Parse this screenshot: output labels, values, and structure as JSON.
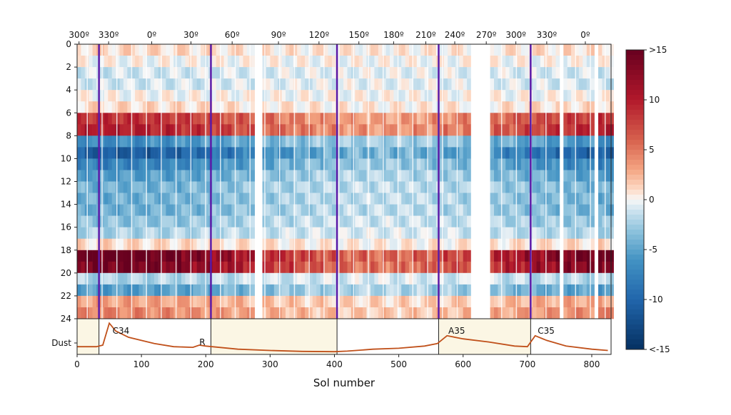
{
  "chart_data": [
    {
      "type": "heatmap",
      "xlabel": "Sol number",
      "xlim": [
        0,
        830
      ],
      "ylim": [
        24,
        0
      ],
      "x_ticks": [
        0,
        100,
        200,
        300,
        400,
        500,
        600,
        700,
        800
      ],
      "y_ticks": [
        0,
        2,
        4,
        6,
        8,
        10,
        12,
        14,
        16,
        18,
        20,
        22,
        24
      ],
      "top_axis": {
        "tick_sols": [
          3,
          49,
          116,
          177,
          241,
          313,
          376,
          438,
          492,
          542,
          587,
          636,
          682,
          730,
          790
        ],
        "tick_labels": [
          "300º",
          "330º",
          "0º",
          "30º",
          "60º",
          "90º",
          "120º",
          "150º",
          "180º",
          "210º",
          "240º",
          "270º",
          "300º",
          "330º",
          "0º"
        ]
      },
      "colormap": "RdBu_r",
      "color_range": [
        -15,
        15
      ],
      "colorbar_ticks": [
        15,
        10,
        5,
        0,
        -5,
        -10,
        -15
      ],
      "colorbar_labels": [
        ">15",
        "10",
        "5",
        "0",
        "-5",
        "-10",
        "<-15"
      ],
      "hourly_profile": [
        1,
        0,
        -1,
        -1,
        0,
        1,
        8,
        9,
        -6,
        -10,
        -7,
        -5,
        -4,
        -4,
        -4,
        -3,
        -2,
        1,
        14,
        13,
        -2,
        -5,
        3,
        4
      ],
      "data_gaps_sol": [
        [
          275,
          286
        ],
        [
          610,
          640
        ],
        [
          745,
          752
        ],
        [
          800,
          808
        ]
      ],
      "event_lines_sol": [
        34,
        208,
        404,
        562,
        705
      ],
      "event_line_color": "#5b1aa8"
    },
    {
      "type": "line",
      "ylabel": "Dust",
      "xlim": [
        0,
        830
      ],
      "x": [
        0,
        30,
        40,
        50,
        60,
        80,
        120,
        150,
        180,
        190,
        200,
        250,
        300,
        350,
        400,
        420,
        460,
        500,
        540,
        560,
        575,
        600,
        640,
        680,
        700,
        712,
        730,
        760,
        800,
        825
      ],
      "y": [
        0.2,
        0.2,
        0.25,
        0.95,
        0.7,
        0.5,
        0.3,
        0.2,
        0.18,
        0.25,
        0.22,
        0.12,
        0.08,
        0.05,
        0.04,
        0.06,
        0.12,
        0.15,
        0.22,
        0.3,
        0.55,
        0.45,
        0.35,
        0.22,
        0.2,
        0.55,
        0.4,
        0.22,
        0.12,
        0.08
      ],
      "line_color": "#c0501a",
      "shaded_ranges_sol": [
        [
          0,
          34
        ],
        [
          208,
          404
        ],
        [
          562,
          705
        ]
      ],
      "shade_color": "#fbf6e4",
      "annotations": [
        {
          "text": "C34",
          "sol": 55
        },
        {
          "text": "R",
          "sol": 190
        },
        {
          "text": "A35",
          "sol": 577
        },
        {
          "text": "C35",
          "sol": 716
        }
      ]
    }
  ]
}
